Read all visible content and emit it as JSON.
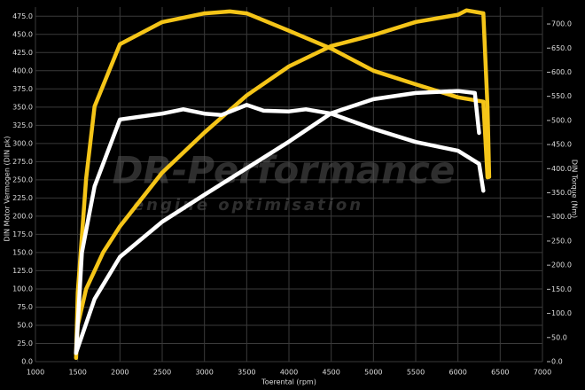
{
  "chart_data": {
    "type": "line",
    "xlabel": "Toerental (rpm)",
    "ylabel": "DIN Motor Vermogen (DIN pk)",
    "y2label": "DIN Torque (Nm)",
    "watermark": "DR-Performance",
    "watermark_sub": "engine optimisation",
    "xlim": [
      1000,
      7000
    ],
    "xticks": [
      1000,
      1500,
      2000,
      2500,
      3000,
      3500,
      4000,
      4500,
      5000,
      5500,
      6000,
      6500,
      7000
    ],
    "ylim": [
      0,
      487.5
    ],
    "yticks": [
      {
        "value": 0,
        "label": "0.0"
      },
      {
        "value": 25,
        "label": "25.0"
      },
      {
        "value": 50,
        "label": "50.0"
      },
      {
        "value": 75,
        "label": "75.0"
      },
      {
        "value": 100,
        "label": "100.0"
      },
      {
        "value": 125,
        "label": "125.0"
      },
      {
        "value": 150,
        "label": "150.0"
      },
      {
        "value": 175,
        "label": "175.0"
      },
      {
        "value": 200,
        "label": "200.0"
      },
      {
        "value": 225,
        "label": "225.0"
      },
      {
        "value": 250,
        "label": "250.0"
      },
      {
        "value": 275,
        "label": "275.0"
      },
      {
        "value": 300,
        "label": "300.0"
      },
      {
        "value": 325,
        "label": "325.0"
      },
      {
        "value": 350,
        "label": "350.0"
      },
      {
        "value": 375,
        "label": "375.0"
      },
      {
        "value": 400,
        "label": "400.0"
      },
      {
        "value": 425,
        "label": "425.0"
      },
      {
        "value": 450,
        "label": "450.0"
      },
      {
        "value": 475,
        "label": "475.0"
      }
    ],
    "y2lim": [
      0,
      735
    ],
    "y2ticks": [
      {
        "value": 0,
        "label": "0.0"
      },
      {
        "value": 50,
        "label": "50.0"
      },
      {
        "value": 100,
        "label": "100.0"
      },
      {
        "value": 150,
        "label": "150.0"
      },
      {
        "value": 200,
        "label": "200.0"
      },
      {
        "value": 250,
        "label": "250.0"
      },
      {
        "value": 300,
        "label": "300.0"
      },
      {
        "value": 350,
        "label": "350.0"
      },
      {
        "value": 400,
        "label": "400.0"
      },
      {
        "value": 450,
        "label": "450.0"
      },
      {
        "value": 500,
        "label": "500.0"
      },
      {
        "value": 550,
        "label": "550.0"
      },
      {
        "value": 600,
        "label": "600.0"
      },
      {
        "value": 650,
        "label": "650.0"
      },
      {
        "value": 700,
        "label": "700.0"
      }
    ],
    "grid": true,
    "series": [
      {
        "color": "#f5c518",
        "axis": "y",
        "x": [
          1480,
          1500,
          1600,
          1800,
          2000,
          2500,
          3000,
          3500,
          4000,
          4500,
          5000,
          5500,
          6000,
          6100,
          6300,
          6350,
          6370
        ],
        "values": [
          5,
          50,
          100,
          150,
          186,
          260,
          315,
          366,
          406,
          434,
          449,
          467,
          477,
          483,
          479,
          351,
          254
        ]
      },
      {
        "color": "#f5c518",
        "axis": "y2",
        "x": [
          1480,
          1500,
          1600,
          1700,
          2000,
          2500,
          3000,
          3300,
          3500,
          4000,
          4500,
          5000,
          5500,
          6000,
          6300,
          6350
        ],
        "values": [
          15,
          143,
          380,
          529,
          658,
          704,
          722,
          726,
          722,
          686,
          649,
          603,
          575,
          548,
          539,
          382
        ]
      },
      {
        "color": "#ffffff",
        "axis": "y",
        "x": [
          1480,
          1550,
          1700,
          2000,
          2500,
          2750,
          3000,
          3200,
          3500,
          3700,
          4000,
          4200,
          4500,
          5000,
          5500,
          6000,
          6250,
          6300
        ],
        "values": [
          12,
          150,
          241,
          333,
          341,
          347,
          341,
          339,
          353,
          345,
          344,
          347,
          341,
          320,
          302,
          290,
          272,
          235
        ]
      },
      {
        "color": "#ffffff",
        "axis": "y2",
        "x": [
          1480,
          1700,
          2000,
          2500,
          3000,
          3500,
          4000,
          4500,
          5000,
          5500,
          6000,
          6200,
          6250
        ],
        "values": [
          18,
          130,
          217,
          290,
          346,
          401,
          456,
          515,
          544,
          557,
          561,
          557,
          474
        ]
      }
    ]
  }
}
